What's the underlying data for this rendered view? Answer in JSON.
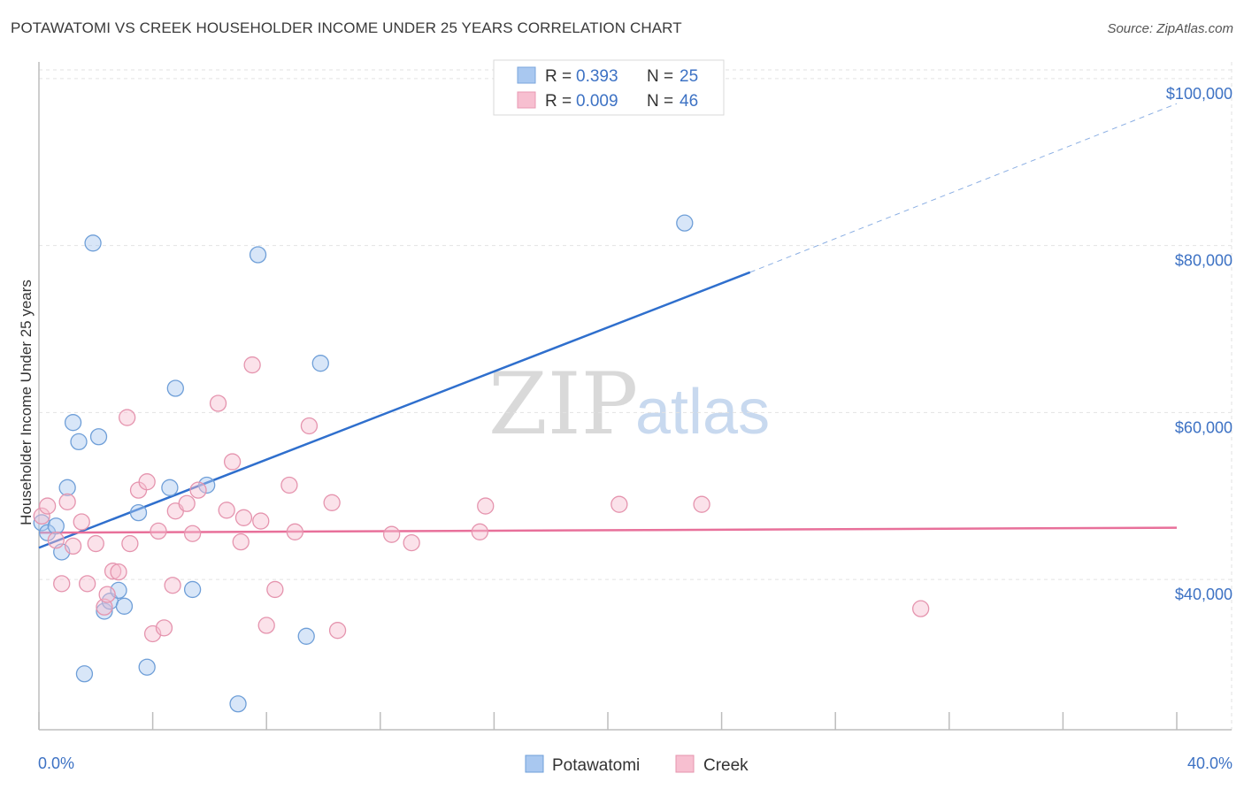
{
  "header": {
    "title": "POTAWATOMI VS CREEK HOUSEHOLDER INCOME UNDER 25 YEARS CORRELATION CHART",
    "source": "Source: ZipAtlas.com"
  },
  "watermark": {
    "zip": "ZIP",
    "atlas": "atlas"
  },
  "legend": {
    "rows": [
      {
        "r_label": "R =",
        "r_value": "0.393",
        "n_label": "N =",
        "n_value": "25",
        "color": "#a9c8f0",
        "stroke": "#7aa6dc"
      },
      {
        "r_label": "R =",
        "r_value": "0.009",
        "n_label": "N =",
        "n_value": "46",
        "color": "#f7bfd0",
        "stroke": "#e89ab3"
      }
    ]
  },
  "chart_data": {
    "type": "scatter",
    "xlabel": "",
    "ylabel": "Householder Income Under 25 years",
    "xlim": [
      0,
      40
    ],
    "ylim": [
      22000,
      102000
    ],
    "x_tick_labels": [
      {
        "value": 0,
        "label": "0.0%"
      },
      {
        "value": 40,
        "label": "40.0%"
      }
    ],
    "y_tick_labels": [
      {
        "value": 40000,
        "label": "$40,000"
      },
      {
        "value": 60000,
        "label": "$60,000"
      },
      {
        "value": 80000,
        "label": "$80,000"
      },
      {
        "value": 100000,
        "label": "$100,000"
      }
    ],
    "grid": true,
    "legend_position": "top-center",
    "series": [
      {
        "name": "Potawatomi",
        "color": "#a9c8f0",
        "stroke": "#6f9fd8",
        "line_color": "#2f6fcd",
        "trend": {
          "x0": 0,
          "y0": 43800,
          "x1": 25,
          "y1": 76800,
          "dash_to_x": 40,
          "dash_to_y": 97000
        },
        "points": [
          [
            0.1,
            46800
          ],
          [
            0.3,
            45600
          ],
          [
            0.6,
            46400
          ],
          [
            0.8,
            43300
          ],
          [
            1.0,
            51000
          ],
          [
            1.2,
            58800
          ],
          [
            1.4,
            56500
          ],
          [
            1.6,
            28700
          ],
          [
            1.9,
            80300
          ],
          [
            2.1,
            57100
          ],
          [
            2.3,
            36200
          ],
          [
            2.5,
            37400
          ],
          [
            2.8,
            38700
          ],
          [
            3.0,
            36800
          ],
          [
            3.5,
            48000
          ],
          [
            3.8,
            29500
          ],
          [
            4.6,
            51000
          ],
          [
            4.8,
            62900
          ],
          [
            5.4,
            38800
          ],
          [
            5.9,
            51300
          ],
          [
            7.0,
            25100
          ],
          [
            7.7,
            78900
          ],
          [
            9.4,
            33200
          ],
          [
            9.9,
            65900
          ],
          [
            22.7,
            82700
          ]
        ]
      },
      {
        "name": "Creek",
        "color": "#f7bfd0",
        "stroke": "#e594ae",
        "line_color": "#e8709a",
        "trend": {
          "x0": 0,
          "y0": 45600,
          "x1": 40,
          "y1": 46200
        },
        "points": [
          [
            0.1,
            47600
          ],
          [
            0.3,
            48800
          ],
          [
            0.6,
            44700
          ],
          [
            0.8,
            39500
          ],
          [
            1.0,
            49300
          ],
          [
            1.2,
            44000
          ],
          [
            1.5,
            46900
          ],
          [
            1.7,
            39500
          ],
          [
            2.0,
            44300
          ],
          [
            2.3,
            36700
          ],
          [
            2.4,
            38200
          ],
          [
            2.6,
            41000
          ],
          [
            2.8,
            40900
          ],
          [
            3.1,
            59400
          ],
          [
            3.2,
            44300
          ],
          [
            3.5,
            50700
          ],
          [
            3.8,
            51700
          ],
          [
            4.0,
            33500
          ],
          [
            4.2,
            45800
          ],
          [
            4.4,
            34200
          ],
          [
            4.7,
            39300
          ],
          [
            4.8,
            48200
          ],
          [
            5.2,
            49100
          ],
          [
            5.4,
            45500
          ],
          [
            5.6,
            50700
          ],
          [
            6.3,
            61100
          ],
          [
            6.6,
            48300
          ],
          [
            6.8,
            54100
          ],
          [
            7.1,
            44500
          ],
          [
            7.2,
            47400
          ],
          [
            7.5,
            65700
          ],
          [
            7.8,
            47000
          ],
          [
            8.0,
            34500
          ],
          [
            8.3,
            38800
          ],
          [
            8.8,
            51300
          ],
          [
            9.0,
            45700
          ],
          [
            9.5,
            58400
          ],
          [
            10.3,
            49200
          ],
          [
            10.5,
            33900
          ],
          [
            12.4,
            45400
          ],
          [
            13.1,
            44400
          ],
          [
            15.5,
            45700
          ],
          [
            15.7,
            48800
          ],
          [
            20.4,
            49000
          ],
          [
            23.3,
            49000
          ],
          [
            31.0,
            36500
          ]
        ]
      }
    ]
  }
}
